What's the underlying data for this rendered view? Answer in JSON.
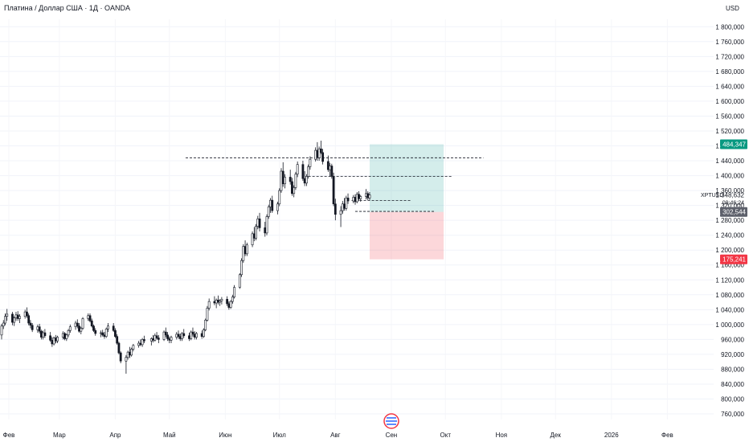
{
  "header": {
    "title": "Платина / Доллар США · 1Д · OANDA"
  },
  "axis": {
    "currency": "USD"
  },
  "symbol": {
    "ticker": "XPTUSD",
    "price": "1 348,632",
    "countdown": "09:46:24"
  },
  "colors": {
    "up": "#131722",
    "down": "#131722",
    "target_zone": "#26a69a",
    "stop_zone": "#f23645",
    "badge_target": "#089981",
    "badge_stop": "#f23645",
    "badge_entry": "#5d606b"
  },
  "chart_data": {
    "type": "candlestick",
    "x_axis_ticks": [
      "Фев",
      "Мар",
      "Апр",
      "Май",
      "Июн",
      "Июл",
      "Авг",
      "Сен",
      "Окт",
      "Ноя",
      "Дек",
      "2026",
      "Фев"
    ],
    "y_axis_ticks": [
      "1 800,000",
      "1 760,000",
      "1 720,000",
      "1 680,000",
      "1 640,000",
      "1 600,000",
      "1 560,000",
      "1 520,000",
      "1 480,000",
      "1 440,000",
      "1 400,000",
      "1 360,000",
      "1 320,000",
      "1 280,000",
      "1 240,000",
      "1 200,000",
      "1 160,000",
      "1 120,000",
      "1 080,000",
      "1 040,000",
      "1 000,000",
      "960,000",
      "920,000",
      "880,000",
      "840,000",
      "800,000",
      "760,000"
    ],
    "ylim": [
      745,
      1820
    ],
    "price_badges": [
      {
        "label": "1 484,347",
        "value": 1484.347,
        "role": "target"
      },
      {
        "label": "1 302,544",
        "value": 1302.544,
        "role": "entry"
      },
      {
        "label": "1 175,241",
        "value": 1175.241,
        "role": "stop"
      }
    ],
    "long_position": {
      "entry": 1302.544,
      "target": 1484.347,
      "stop": 1175.241,
      "start_date": "2025-08-20",
      "end_date": "2025-09-30"
    },
    "horizontal_lines": [
      {
        "value": 1448,
        "from": "2025-05-10",
        "to": "2025-10-22"
      },
      {
        "value": 1398,
        "from": "2025-07-17",
        "to": "2025-10-05"
      },
      {
        "value": 1333,
        "from": "2025-08-10",
        "to": "2025-09-12"
      },
      {
        "value": 1304,
        "from": "2025-08-12",
        "to": "2025-09-25"
      }
    ],
    "candles": [
      [
        "2025-01-28",
        972,
        1002,
        960,
        996
      ],
      [
        "2025-01-29",
        996,
        1012,
        988,
        1004
      ],
      [
        "2025-01-30",
        1004,
        1030,
        998,
        1022
      ],
      [
        "2025-01-31",
        1022,
        1042,
        1010,
        1028
      ],
      [
        "2025-02-03",
        1028,
        1034,
        998,
        1006
      ],
      [
        "2025-02-04",
        1006,
        1022,
        996,
        1018
      ],
      [
        "2025-02-05",
        1018,
        1034,
        1010,
        1026
      ],
      [
        "2025-02-06",
        1026,
        1036,
        1010,
        1016
      ],
      [
        "2025-02-07",
        1016,
        1028,
        1004,
        1022
      ],
      [
        "2025-02-10",
        1022,
        1040,
        1016,
        1034
      ],
      [
        "2025-02-11",
        1034,
        1046,
        1018,
        1024
      ],
      [
        "2025-02-12",
        1024,
        1030,
        998,
        1004
      ],
      [
        "2025-02-13",
        1004,
        1012,
        990,
        998
      ],
      [
        "2025-02-14",
        998,
        1004,
        980,
        986
      ],
      [
        "2025-02-17",
        986,
        1000,
        978,
        994
      ],
      [
        "2025-02-18",
        994,
        1002,
        976,
        982
      ],
      [
        "2025-02-19",
        982,
        986,
        960,
        966
      ],
      [
        "2025-02-20",
        966,
        984,
        960,
        978
      ],
      [
        "2025-02-21",
        978,
        988,
        964,
        970
      ],
      [
        "2025-02-24",
        970,
        980,
        954,
        958
      ],
      [
        "2025-02-25",
        958,
        966,
        940,
        948
      ],
      [
        "2025-02-26",
        948,
        968,
        944,
        964
      ],
      [
        "2025-02-27",
        964,
        972,
        950,
        956
      ],
      [
        "2025-02-28",
        956,
        970,
        950,
        966
      ],
      [
        "2025-03-03",
        966,
        982,
        960,
        976
      ],
      [
        "2025-03-04",
        976,
        980,
        958,
        962
      ],
      [
        "2025-03-05",
        962,
        976,
        956,
        972
      ],
      [
        "2025-03-06",
        972,
        988,
        966,
        984
      ],
      [
        "2025-03-07",
        984,
        1000,
        978,
        994
      ],
      [
        "2025-03-10",
        994,
        1010,
        986,
        1004
      ],
      [
        "2025-03-11",
        1004,
        1014,
        990,
        996
      ],
      [
        "2025-03-12",
        996,
        1004,
        978,
        982
      ],
      [
        "2025-03-13",
        982,
        994,
        974,
        990
      ],
      [
        "2025-03-14",
        990,
        1020,
        986,
        1016
      ],
      [
        "2025-03-17",
        1016,
        1030,
        1010,
        1024
      ],
      [
        "2025-03-18",
        1024,
        1030,
        1006,
        1010
      ],
      [
        "2025-03-19",
        1010,
        1016,
        992,
        996
      ],
      [
        "2025-03-20",
        996,
        1000,
        980,
        984
      ],
      [
        "2025-03-21",
        984,
        990,
        970,
        976
      ],
      [
        "2025-03-24",
        976,
        984,
        966,
        978
      ],
      [
        "2025-03-25",
        978,
        986,
        968,
        972
      ],
      [
        "2025-03-26",
        972,
        980,
        962,
        968
      ],
      [
        "2025-03-27",
        968,
        992,
        964,
        988
      ],
      [
        "2025-03-28",
        988,
        1004,
        980,
        996
      ],
      [
        "2025-03-31",
        996,
        1004,
        980,
        984
      ],
      [
        "2025-04-01",
        984,
        990,
        964,
        968
      ],
      [
        "2025-04-02",
        968,
        974,
        946,
        950
      ],
      [
        "2025-04-03",
        950,
        954,
        920,
        924
      ],
      [
        "2025-04-04",
        924,
        928,
        896,
        902
      ],
      [
        "2025-04-07",
        902,
        918,
        868,
        912
      ],
      [
        "2025-04-08",
        912,
        930,
        906,
        926
      ],
      [
        "2025-04-09",
        926,
        940,
        910,
        918
      ],
      [
        "2025-04-10",
        918,
        938,
        914,
        934
      ],
      [
        "2025-04-11",
        934,
        948,
        928,
        944
      ],
      [
        "2025-04-14",
        944,
        956,
        938,
        950
      ],
      [
        "2025-04-15",
        950,
        960,
        942,
        946
      ],
      [
        "2025-04-16",
        946,
        964,
        940,
        960
      ],
      [
        "2025-04-17",
        960,
        970,
        950,
        956
      ],
      [
        "2025-04-21",
        956,
        966,
        944,
        962
      ],
      [
        "2025-04-22",
        962,
        972,
        952,
        958
      ],
      [
        "2025-04-23",
        958,
        976,
        954,
        970
      ],
      [
        "2025-04-24",
        970,
        980,
        960,
        964
      ],
      [
        "2025-04-25",
        964,
        972,
        950,
        960
      ],
      [
        "2025-04-28",
        960,
        984,
        956,
        980
      ],
      [
        "2025-04-29",
        980,
        992,
        966,
        972
      ],
      [
        "2025-04-30",
        972,
        980,
        956,
        962
      ],
      [
        "2025-05-01",
        962,
        968,
        950,
        958
      ],
      [
        "2025-05-02",
        958,
        970,
        950,
        966
      ],
      [
        "2025-05-05",
        966,
        980,
        960,
        974
      ],
      [
        "2025-05-06",
        974,
        984,
        962,
        968
      ],
      [
        "2025-05-07",
        968,
        976,
        956,
        962
      ],
      [
        "2025-05-08",
        962,
        980,
        956,
        976
      ],
      [
        "2025-05-09",
        976,
        988,
        964,
        970
      ],
      [
        "2025-05-12",
        970,
        978,
        956,
        962
      ],
      [
        "2025-05-13",
        962,
        984,
        958,
        980
      ],
      [
        "2025-05-14",
        980,
        992,
        968,
        974
      ],
      [
        "2025-05-15",
        974,
        982,
        960,
        966
      ],
      [
        "2025-05-16",
        966,
        980,
        960,
        976
      ],
      [
        "2025-05-19",
        976,
        984,
        962,
        968
      ],
      [
        "2025-05-20",
        968,
        990,
        964,
        986
      ],
      [
        "2025-05-21",
        986,
        1016,
        982,
        1012
      ],
      [
        "2025-05-22",
        1012,
        1050,
        1008,
        1044
      ],
      [
        "2025-05-23",
        1044,
        1070,
        1038,
        1062
      ],
      [
        "2025-05-26",
        1062,
        1076,
        1052,
        1058
      ],
      [
        "2025-05-27",
        1058,
        1070,
        1044,
        1066
      ],
      [
        "2025-05-28",
        1066,
        1078,
        1054,
        1060
      ],
      [
        "2025-05-29",
        1060,
        1068,
        1050,
        1064
      ],
      [
        "2025-05-30",
        1064,
        1074,
        1054,
        1068
      ],
      [
        "2025-06-02",
        1068,
        1076,
        1050,
        1056
      ],
      [
        "2025-06-03",
        1056,
        1062,
        1040,
        1046
      ],
      [
        "2025-06-04",
        1046,
        1066,
        1042,
        1062
      ],
      [
        "2025-06-05",
        1062,
        1080,
        1056,
        1074
      ],
      [
        "2025-06-06",
        1074,
        1106,
        1070,
        1100
      ],
      [
        "2025-06-09",
        1100,
        1138,
        1096,
        1134
      ],
      [
        "2025-06-10",
        1134,
        1178,
        1128,
        1172
      ],
      [
        "2025-06-11",
        1172,
        1216,
        1166,
        1210
      ],
      [
        "2025-06-12",
        1210,
        1226,
        1184,
        1190
      ],
      [
        "2025-06-13",
        1190,
        1220,
        1184,
        1214
      ],
      [
        "2025-06-16",
        1214,
        1250,
        1208,
        1244
      ],
      [
        "2025-06-17",
        1244,
        1262,
        1224,
        1232
      ],
      [
        "2025-06-18",
        1232,
        1270,
        1226,
        1264
      ],
      [
        "2025-06-19",
        1264,
        1292,
        1256,
        1284
      ],
      [
        "2025-06-20",
        1284,
        1300,
        1250,
        1260
      ],
      [
        "2025-06-23",
        1260,
        1276,
        1236,
        1246
      ],
      [
        "2025-06-24",
        1246,
        1296,
        1240,
        1290
      ],
      [
        "2025-06-25",
        1290,
        1322,
        1284,
        1316
      ],
      [
        "2025-06-26",
        1316,
        1340,
        1300,
        1334
      ],
      [
        "2025-06-27",
        1334,
        1346,
        1300,
        1306
      ],
      [
        "2025-06-30",
        1306,
        1330,
        1296,
        1324
      ],
      [
        "2025-07-01",
        1324,
        1366,
        1318,
        1360
      ],
      [
        "2025-07-02",
        1360,
        1420,
        1354,
        1412
      ],
      [
        "2025-07-03",
        1412,
        1436,
        1370,
        1378
      ],
      [
        "2025-07-04",
        1378,
        1404,
        1366,
        1396
      ],
      [
        "2025-07-07",
        1396,
        1416,
        1376,
        1384
      ],
      [
        "2025-07-08",
        1384,
        1394,
        1346,
        1352
      ],
      [
        "2025-07-09",
        1352,
        1374,
        1342,
        1368
      ],
      [
        "2025-07-10",
        1368,
        1410,
        1362,
        1404
      ],
      [
        "2025-07-11",
        1404,
        1438,
        1396,
        1430
      ],
      [
        "2025-07-14",
        1430,
        1440,
        1386,
        1392
      ],
      [
        "2025-07-15",
        1392,
        1412,
        1372,
        1380
      ],
      [
        "2025-07-16",
        1380,
        1404,
        1372,
        1398
      ],
      [
        "2025-07-17",
        1398,
        1430,
        1392,
        1424
      ],
      [
        "2025-07-18",
        1424,
        1452,
        1416,
        1444
      ],
      [
        "2025-07-21",
        1444,
        1476,
        1438,
        1468
      ],
      [
        "2025-07-22",
        1468,
        1490,
        1440,
        1448
      ],
      [
        "2025-07-23",
        1448,
        1478,
        1440,
        1472
      ],
      [
        "2025-07-24",
        1472,
        1494,
        1458,
        1462
      ],
      [
        "2025-07-25",
        1462,
        1472,
        1430,
        1438
      ],
      [
        "2025-07-28",
        1438,
        1454,
        1410,
        1416
      ],
      [
        "2025-07-29",
        1416,
        1434,
        1398,
        1426
      ],
      [
        "2025-07-30",
        1426,
        1432,
        1392,
        1398
      ],
      [
        "2025-07-31",
        1398,
        1408,
        1318,
        1324
      ],
      [
        "2025-08-01",
        1324,
        1338,
        1280,
        1296
      ],
      [
        "2025-08-04",
        1296,
        1318,
        1262,
        1306
      ],
      [
        "2025-08-05",
        1306,
        1332,
        1298,
        1324
      ],
      [
        "2025-08-06",
        1324,
        1340,
        1306,
        1312
      ],
      [
        "2025-08-07",
        1312,
        1346,
        1306,
        1340
      ],
      [
        "2025-08-08",
        1340,
        1352,
        1324,
        1332
      ],
      [
        "2025-08-11",
        1332,
        1348,
        1326,
        1342
      ],
      [
        "2025-08-12",
        1342,
        1350,
        1322,
        1330
      ],
      [
        "2025-08-13",
        1330,
        1356,
        1326,
        1350
      ],
      [
        "2025-08-14",
        1350,
        1358,
        1332,
        1338
      ],
      [
        "2025-08-15",
        1338,
        1348,
        1330,
        1344
      ],
      [
        "2025-08-18",
        1344,
        1364,
        1336,
        1352
      ],
      [
        "2025-08-19",
        1352,
        1358,
        1334,
        1340
      ],
      [
        "2025-08-20",
        1340,
        1356,
        1334,
        1348
      ]
    ]
  }
}
